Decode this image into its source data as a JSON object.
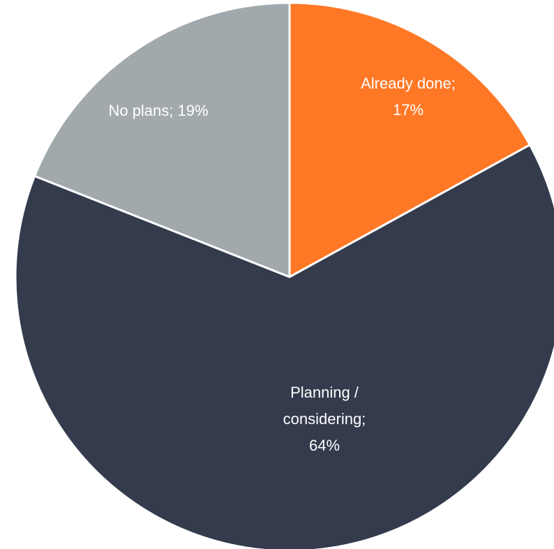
{
  "chart_data": {
    "type": "pie",
    "title": "",
    "start_angle_deg": 0,
    "direction": "clockwise",
    "legend": "none",
    "slices": [
      {
        "name": "Already done",
        "value": 17,
        "color": "#FF7826",
        "label_lines": [
          "Already done;",
          "17%"
        ]
      },
      {
        "name": "Planning / considering",
        "value": 64,
        "color": "#333B4D",
        "label_lines": [
          "Planning /",
          "considering;",
          "64%"
        ]
      },
      {
        "name": "No plans",
        "value": 19,
        "color": "#A2A9AD",
        "label_lines": [
          "No plans; 19%"
        ]
      }
    ]
  }
}
